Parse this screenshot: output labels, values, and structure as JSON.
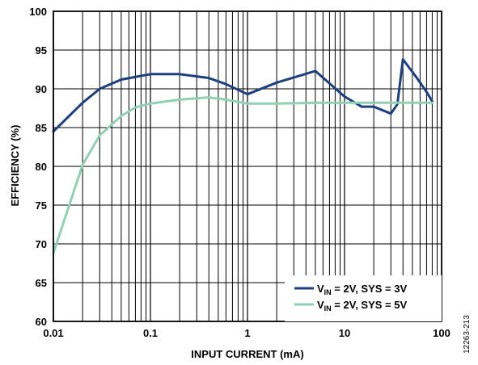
{
  "chart_data": {
    "type": "line",
    "xlabel": "INPUT CURRENT (mA)",
    "ylabel": "EFFICIENCY (%)",
    "x_scale": "log",
    "xlim": [
      0.01,
      100
    ],
    "ylim": [
      60,
      100
    ],
    "x_ticks": [
      {
        "value": 0.01,
        "label": "0.01"
      },
      {
        "value": 0.1,
        "label": "0.1"
      },
      {
        "value": 1,
        "label": "1"
      },
      {
        "value": 10,
        "label": "10"
      },
      {
        "value": 100,
        "label": "100"
      }
    ],
    "y_ticks": [
      {
        "value": 60,
        "label": "60"
      },
      {
        "value": 65,
        "label": "65"
      },
      {
        "value": 70,
        "label": "70"
      },
      {
        "value": 75,
        "label": "75"
      },
      {
        "value": 80,
        "label": "80"
      },
      {
        "value": 85,
        "label": "85"
      },
      {
        "value": 90,
        "label": "90"
      },
      {
        "value": 95,
        "label": "95"
      },
      {
        "value": 100,
        "label": "100"
      }
    ],
    "grid": true,
    "legend_position": "bottom-right",
    "series": [
      {
        "name": "VIN = 2V, SYS = 3V",
        "legend_main": "V",
        "legend_sub": "IN",
        "legend_rest": " = 2V, SYS = 3V",
        "color": "#1b3f7f",
        "x": [
          0.01,
          0.02,
          0.03,
          0.05,
          0.1,
          0.2,
          0.4,
          0.6,
          1,
          2,
          5,
          10,
          15,
          20,
          30,
          35,
          40,
          55,
          70,
          80
        ],
        "y": [
          84.5,
          88.2,
          90.0,
          91.2,
          91.9,
          91.9,
          91.4,
          90.6,
          89.3,
          90.8,
          92.3,
          89.0,
          87.7,
          87.7,
          86.8,
          88.0,
          93.8,
          91.5,
          89.6,
          88.4
        ]
      },
      {
        "name": "VIN = 2V, SYS = 5V",
        "legend_main": "V",
        "legend_sub": "IN",
        "legend_rest": " = 2V, SYS = 5V",
        "color": "#8fd1b2",
        "x": [
          0.01,
          0.02,
          0.03,
          0.05,
          0.07,
          0.1,
          0.2,
          0.4,
          0.6,
          1,
          2,
          5,
          10,
          20,
          50,
          80
        ],
        "y": [
          68.8,
          80.2,
          84.0,
          86.5,
          87.6,
          88.1,
          88.6,
          88.9,
          88.6,
          88.1,
          88.1,
          88.2,
          88.2,
          88.2,
          88.2,
          88.2
        ]
      }
    ]
  },
  "figure_id": "12263-213"
}
